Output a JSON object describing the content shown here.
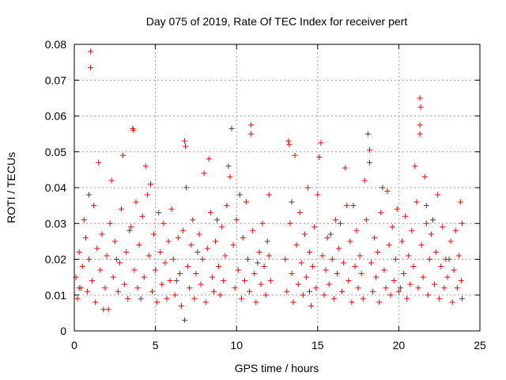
{
  "chart_data": {
    "type": "scatter",
    "title": "Day 075 of 2019, Rate Of TEC Index for receiver pert",
    "xlabel": "GPS time / hours",
    "ylabel": "ROTI / TECUs",
    "xlim": [
      0,
      25
    ],
    "ylim": [
      0,
      0.08
    ],
    "xticks": [
      "0",
      "5",
      "10",
      "15",
      "20",
      "25"
    ],
    "yticks": [
      "0",
      "0.01",
      "0.02",
      "0.03",
      "0.04",
      "0.05",
      "0.06",
      "0.07",
      "0.08"
    ],
    "grid": true,
    "marker": "plus",
    "series": [
      {
        "name": "grey",
        "color": "#404040",
        "points": [
          [
            0.3,
            0.012
          ],
          [
            0.9,
            0.038
          ],
          [
            1.8,
            0.006
          ],
          [
            2.6,
            0.02
          ],
          [
            3.4,
            0.028
          ],
          [
            4.1,
            0.009
          ],
          [
            5.2,
            0.033
          ],
          [
            6.3,
            0.014
          ],
          [
            6.9,
            0.04
          ],
          [
            7.6,
            0.022
          ],
          [
            8.8,
            0.031
          ],
          [
            9.7,
            0.0565
          ],
          [
            9.5,
            0.046
          ],
          [
            10.2,
            0.038
          ],
          [
            11.3,
            0.019
          ],
          [
            13.4,
            0.036
          ],
          [
            14.5,
            0.011
          ],
          [
            15.8,
            0.027
          ],
          [
            16.4,
            0.03
          ],
          [
            17.2,
            0.035
          ],
          [
            18.1,
            0.055
          ],
          [
            18.2,
            0.047
          ],
          [
            19.0,
            0.04
          ],
          [
            20.1,
            0.012
          ],
          [
            21.7,
            0.035
          ],
          [
            22.1,
            0.031
          ],
          [
            23.1,
            0.02
          ],
          [
            23.9,
            0.009
          ],
          [
            6.8,
            0.003
          ],
          [
            11.9,
            0.025
          ]
        ]
      },
      {
        "name": "red",
        "color": "#ff0000",
        "points": [
          [
            1.0,
            0.078
          ],
          [
            1.0,
            0.0735
          ],
          [
            3.6,
            0.0565
          ],
          [
            3.65,
            0.056
          ],
          [
            10.9,
            0.0575
          ],
          [
            10.9,
            0.055
          ],
          [
            13.2,
            0.053
          ],
          [
            13.25,
            0.052
          ],
          [
            15.2,
            0.0525
          ],
          [
            18.2,
            0.0505
          ],
          [
            21.3,
            0.065
          ],
          [
            21.35,
            0.0625
          ],
          [
            21.3,
            0.0575
          ],
          [
            21.3,
            0.055
          ],
          [
            6.8,
            0.053
          ],
          [
            6.85,
            0.0515
          ],
          [
            3.0,
            0.049
          ],
          [
            8.3,
            0.048
          ],
          [
            13.6,
            0.049
          ],
          [
            15.1,
            0.0485
          ],
          [
            4.4,
            0.046
          ],
          [
            16.7,
            0.0455
          ],
          [
            1.5,
            0.047
          ],
          [
            21.0,
            0.046
          ],
          [
            22.4,
            0.038
          ],
          [
            23.8,
            0.036
          ],
          [
            8.0,
            0.044
          ],
          [
            17.9,
            0.042
          ],
          [
            19.3,
            0.039
          ],
          [
            2.3,
            0.042
          ],
          [
            12.0,
            0.038
          ],
          [
            14.4,
            0.04
          ],
          [
            4.7,
            0.041
          ],
          [
            21.6,
            0.043
          ],
          [
            9.6,
            0.043
          ],
          [
            0.1,
            0.015
          ],
          [
            0.2,
            0.009
          ],
          [
            0.3,
            0.022
          ],
          [
            0.4,
            0.012
          ],
          [
            0.5,
            0.018
          ],
          [
            0.6,
            0.031
          ],
          [
            0.7,
            0.026
          ],
          [
            0.8,
            0.011
          ],
          [
            0.9,
            0.02
          ],
          [
            1.1,
            0.014
          ],
          [
            1.2,
            0.035
          ],
          [
            1.3,
            0.008
          ],
          [
            1.4,
            0.023
          ],
          [
            1.6,
            0.017
          ],
          [
            1.7,
            0.027
          ],
          [
            1.9,
            0.012
          ],
          [
            2.0,
            0.021
          ],
          [
            2.1,
            0.006
          ],
          [
            2.2,
            0.03
          ],
          [
            2.4,
            0.015
          ],
          [
            2.5,
            0.025
          ],
          [
            2.7,
            0.011
          ],
          [
            2.8,
            0.019
          ],
          [
            2.9,
            0.034
          ],
          [
            3.1,
            0.013
          ],
          [
            3.2,
            0.022
          ],
          [
            3.3,
            0.009
          ],
          [
            3.5,
            0.029
          ],
          [
            3.7,
            0.017
          ],
          [
            3.8,
            0.036
          ],
          [
            3.9,
            0.012
          ],
          [
            4.0,
            0.024
          ],
          [
            4.2,
            0.032
          ],
          [
            4.3,
            0.015
          ],
          [
            4.5,
            0.038
          ],
          [
            4.6,
            0.021
          ],
          [
            4.8,
            0.011
          ],
          [
            4.9,
            0.027
          ],
          [
            5.0,
            0.017
          ],
          [
            5.1,
            0.008
          ],
          [
            5.3,
            0.022
          ],
          [
            5.4,
            0.013
          ],
          [
            5.5,
            0.03
          ],
          [
            5.6,
            0.019
          ],
          [
            5.7,
            0.009
          ],
          [
            5.8,
            0.025
          ],
          [
            5.9,
            0.014
          ],
          [
            6.0,
            0.034
          ],
          [
            6.1,
            0.02
          ],
          [
            6.2,
            0.01
          ],
          [
            6.4,
            0.026
          ],
          [
            6.5,
            0.016
          ],
          [
            6.6,
            0.007
          ],
          [
            6.7,
            0.028
          ],
          [
            7.0,
            0.018
          ],
          [
            7.1,
            0.012
          ],
          [
            7.2,
            0.024
          ],
          [
            7.3,
            0.031
          ],
          [
            7.4,
            0.009
          ],
          [
            7.5,
            0.016
          ],
          [
            7.7,
            0.027
          ],
          [
            7.8,
            0.013
          ],
          [
            7.9,
            0.02
          ],
          [
            8.1,
            0.008
          ],
          [
            8.2,
            0.023
          ],
          [
            8.4,
            0.033
          ],
          [
            8.5,
            0.015
          ],
          [
            8.6,
            0.011
          ],
          [
            8.7,
            0.025
          ],
          [
            8.9,
            0.018
          ],
          [
            9.0,
            0.01
          ],
          [
            9.1,
            0.029
          ],
          [
            9.2,
            0.014
          ],
          [
            9.3,
            0.021
          ],
          [
            9.4,
            0.035
          ],
          [
            9.8,
            0.024
          ],
          [
            9.9,
            0.012
          ],
          [
            10.0,
            0.031
          ],
          [
            10.1,
            0.017
          ],
          [
            10.3,
            0.009
          ],
          [
            10.4,
            0.026
          ],
          [
            10.5,
            0.014
          ],
          [
            10.6,
            0.036
          ],
          [
            10.7,
            0.02
          ],
          [
            10.8,
            0.011
          ],
          [
            11.0,
            0.028
          ],
          [
            11.1,
            0.016
          ],
          [
            11.2,
            0.008
          ],
          [
            11.4,
            0.022
          ],
          [
            11.5,
            0.013
          ],
          [
            11.6,
            0.03
          ],
          [
            11.7,
            0.018
          ],
          [
            11.8,
            0.01
          ],
          [
            12.0,
            0.021
          ],
          [
            12.1,
            0.014
          ],
          [
            13.0,
            0.02
          ],
          [
            13.1,
            0.011
          ],
          [
            13.3,
            0.03
          ],
          [
            13.4,
            0.016
          ],
          [
            13.5,
            0.008
          ],
          [
            13.7,
            0.024
          ],
          [
            13.8,
            0.013
          ],
          [
            13.9,
            0.033
          ],
          [
            14.0,
            0.019
          ],
          [
            14.1,
            0.01
          ],
          [
            14.2,
            0.027
          ],
          [
            14.3,
            0.015
          ],
          [
            14.5,
            0.022
          ],
          [
            14.6,
            0.007
          ],
          [
            14.7,
            0.018
          ],
          [
            14.8,
            0.029
          ],
          [
            14.9,
            0.012
          ],
          [
            15.0,
            0.038
          ],
          [
            15.3,
            0.021
          ],
          [
            15.4,
            0.01
          ],
          [
            15.5,
            0.017
          ],
          [
            15.6,
            0.026
          ],
          [
            15.7,
            0.013
          ],
          [
            15.9,
            0.02
          ],
          [
            16.0,
            0.009
          ],
          [
            16.1,
            0.031
          ],
          [
            16.2,
            0.016
          ],
          [
            16.3,
            0.023
          ],
          [
            16.5,
            0.011
          ],
          [
            16.6,
            0.019
          ],
          [
            16.8,
            0.035
          ],
          [
            16.9,
            0.014
          ],
          [
            17.0,
            0.025
          ],
          [
            17.1,
            0.008
          ],
          [
            17.3,
            0.018
          ],
          [
            17.4,
            0.028
          ],
          [
            17.5,
            0.012
          ],
          [
            17.6,
            0.021
          ],
          [
            17.7,
            0.016
          ],
          [
            17.8,
            0.009
          ],
          [
            18.0,
            0.031
          ],
          [
            18.3,
            0.019
          ],
          [
            18.4,
            0.011
          ],
          [
            18.5,
            0.026
          ],
          [
            18.6,
            0.015
          ],
          [
            18.7,
            0.022
          ],
          [
            18.8,
            0.008
          ],
          [
            18.9,
            0.033
          ],
          [
            19.1,
            0.017
          ],
          [
            19.2,
            0.012
          ],
          [
            19.4,
            0.024
          ],
          [
            19.5,
            0.01
          ],
          [
            19.6,
            0.029
          ],
          [
            19.7,
            0.014
          ],
          [
            19.8,
            0.02
          ],
          [
            19.9,
            0.034
          ],
          [
            20.0,
            0.011
          ],
          [
            20.2,
            0.025
          ],
          [
            20.3,
            0.016
          ],
          [
            20.4,
            0.032
          ],
          [
            20.5,
            0.009
          ],
          [
            20.6,
            0.021
          ],
          [
            20.7,
            0.013
          ],
          [
            20.8,
            0.028
          ],
          [
            20.9,
            0.018
          ],
          [
            21.1,
            0.036
          ],
          [
            21.2,
            0.012
          ],
          [
            21.4,
            0.024
          ],
          [
            21.5,
            0.015
          ],
          [
            21.7,
            0.03
          ],
          [
            21.8,
            0.01
          ],
          [
            21.9,
            0.02
          ],
          [
            22.0,
            0.027
          ],
          [
            22.2,
            0.013
          ],
          [
            22.3,
            0.022
          ],
          [
            22.5,
            0.009
          ],
          [
            22.6,
            0.018
          ],
          [
            22.7,
            0.029
          ],
          [
            22.8,
            0.012
          ],
          [
            22.9,
            0.02
          ],
          [
            23.0,
            0.015
          ],
          [
            23.2,
            0.025
          ],
          [
            23.3,
            0.008
          ],
          [
            23.4,
            0.017
          ],
          [
            23.5,
            0.028
          ],
          [
            23.6,
            0.012
          ],
          [
            23.7,
            0.021
          ],
          [
            23.85,
            0.014
          ],
          [
            23.9,
            0.03
          ]
        ]
      }
    ]
  }
}
